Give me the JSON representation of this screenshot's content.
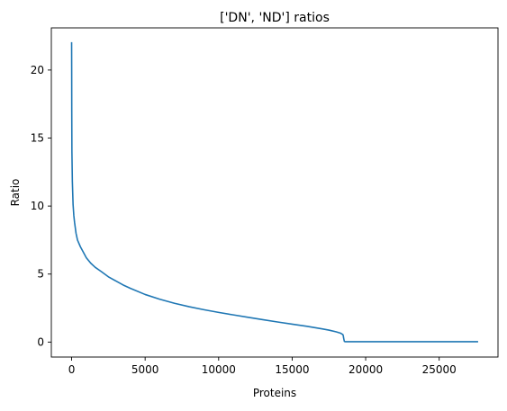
{
  "chart_data": {
    "type": "line",
    "title": "['DN', 'ND'] ratios",
    "xlabel": "Proteins",
    "ylabel": "Ratio",
    "xlim": [
      -1380,
      29000
    ],
    "ylim": [
      -1.1,
      23.1
    ],
    "xticks": [
      0,
      5000,
      10000,
      15000,
      20000,
      25000
    ],
    "xtick_labels": [
      "0",
      "5000",
      "10000",
      "15000",
      "20000",
      "25000"
    ],
    "yticks": [
      0,
      5,
      10,
      15,
      20
    ],
    "ytick_labels": [
      "0",
      "5",
      "10",
      "15",
      "20"
    ],
    "grid": false,
    "series": [
      {
        "color": "#1f77b4",
        "x": [
          0,
          5,
          10,
          20,
          50,
          100,
          150,
          200,
          300,
          400,
          600,
          800,
          1000,
          1300,
          1600,
          2000,
          2500,
          3000,
          3500,
          4000,
          5000,
          6000,
          7000,
          8000,
          9000,
          10000,
          11000,
          12000,
          13000,
          14000,
          15000,
          16000,
          17000,
          17500,
          18000,
          18300,
          18450,
          18480,
          18500,
          18550,
          18600,
          20000,
          22000,
          24000,
          26000,
          27600
        ],
        "y": [
          22.0,
          20.0,
          17.0,
          14.0,
          11.8,
          10.1,
          9.3,
          8.8,
          8.0,
          7.5,
          7.0,
          6.6,
          6.2,
          5.8,
          5.5,
          5.2,
          4.8,
          4.5,
          4.2,
          3.95,
          3.5,
          3.15,
          2.85,
          2.6,
          2.38,
          2.18,
          2.0,
          1.82,
          1.65,
          1.48,
          1.32,
          1.16,
          0.98,
          0.88,
          0.75,
          0.65,
          0.55,
          0.45,
          0.3,
          0.05,
          0.03,
          0.03,
          0.03,
          0.03,
          0.03,
          0.03
        ]
      }
    ]
  }
}
